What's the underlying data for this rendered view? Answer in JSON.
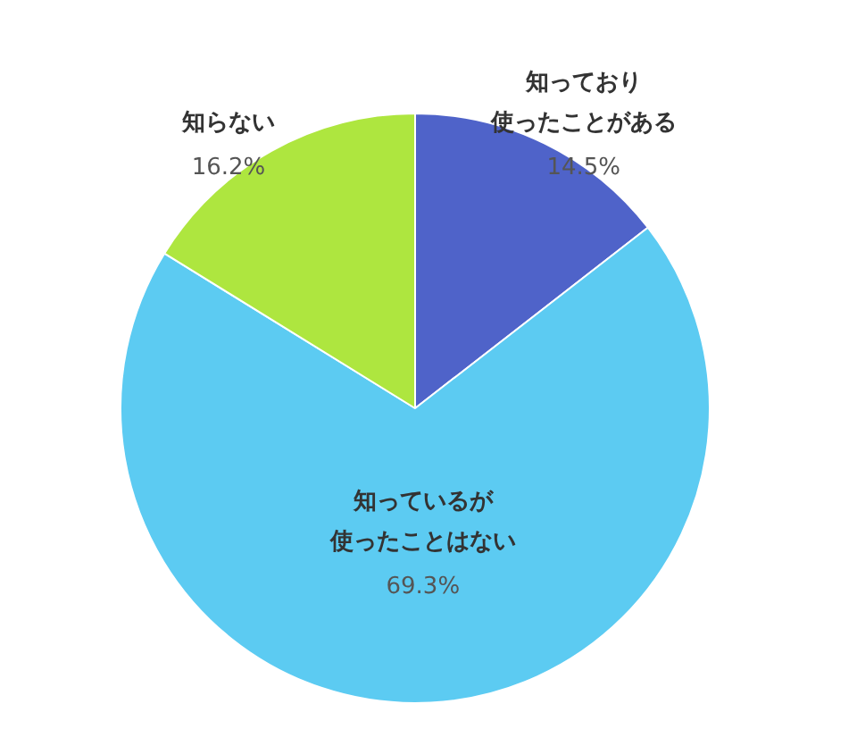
{
  "chart_data": {
    "type": "pie",
    "categories": [
      "知っており使ったことがある",
      "知っているが使ったことはない",
      "知らない"
    ],
    "values": [
      14.5,
      69.3,
      16.2
    ],
    "colors": [
      "#4f63c9",
      "#5ccbf2",
      "#aee63f"
    ],
    "value_labels": [
      "14.5%",
      "69.3%",
      "16.2%"
    ]
  }
}
